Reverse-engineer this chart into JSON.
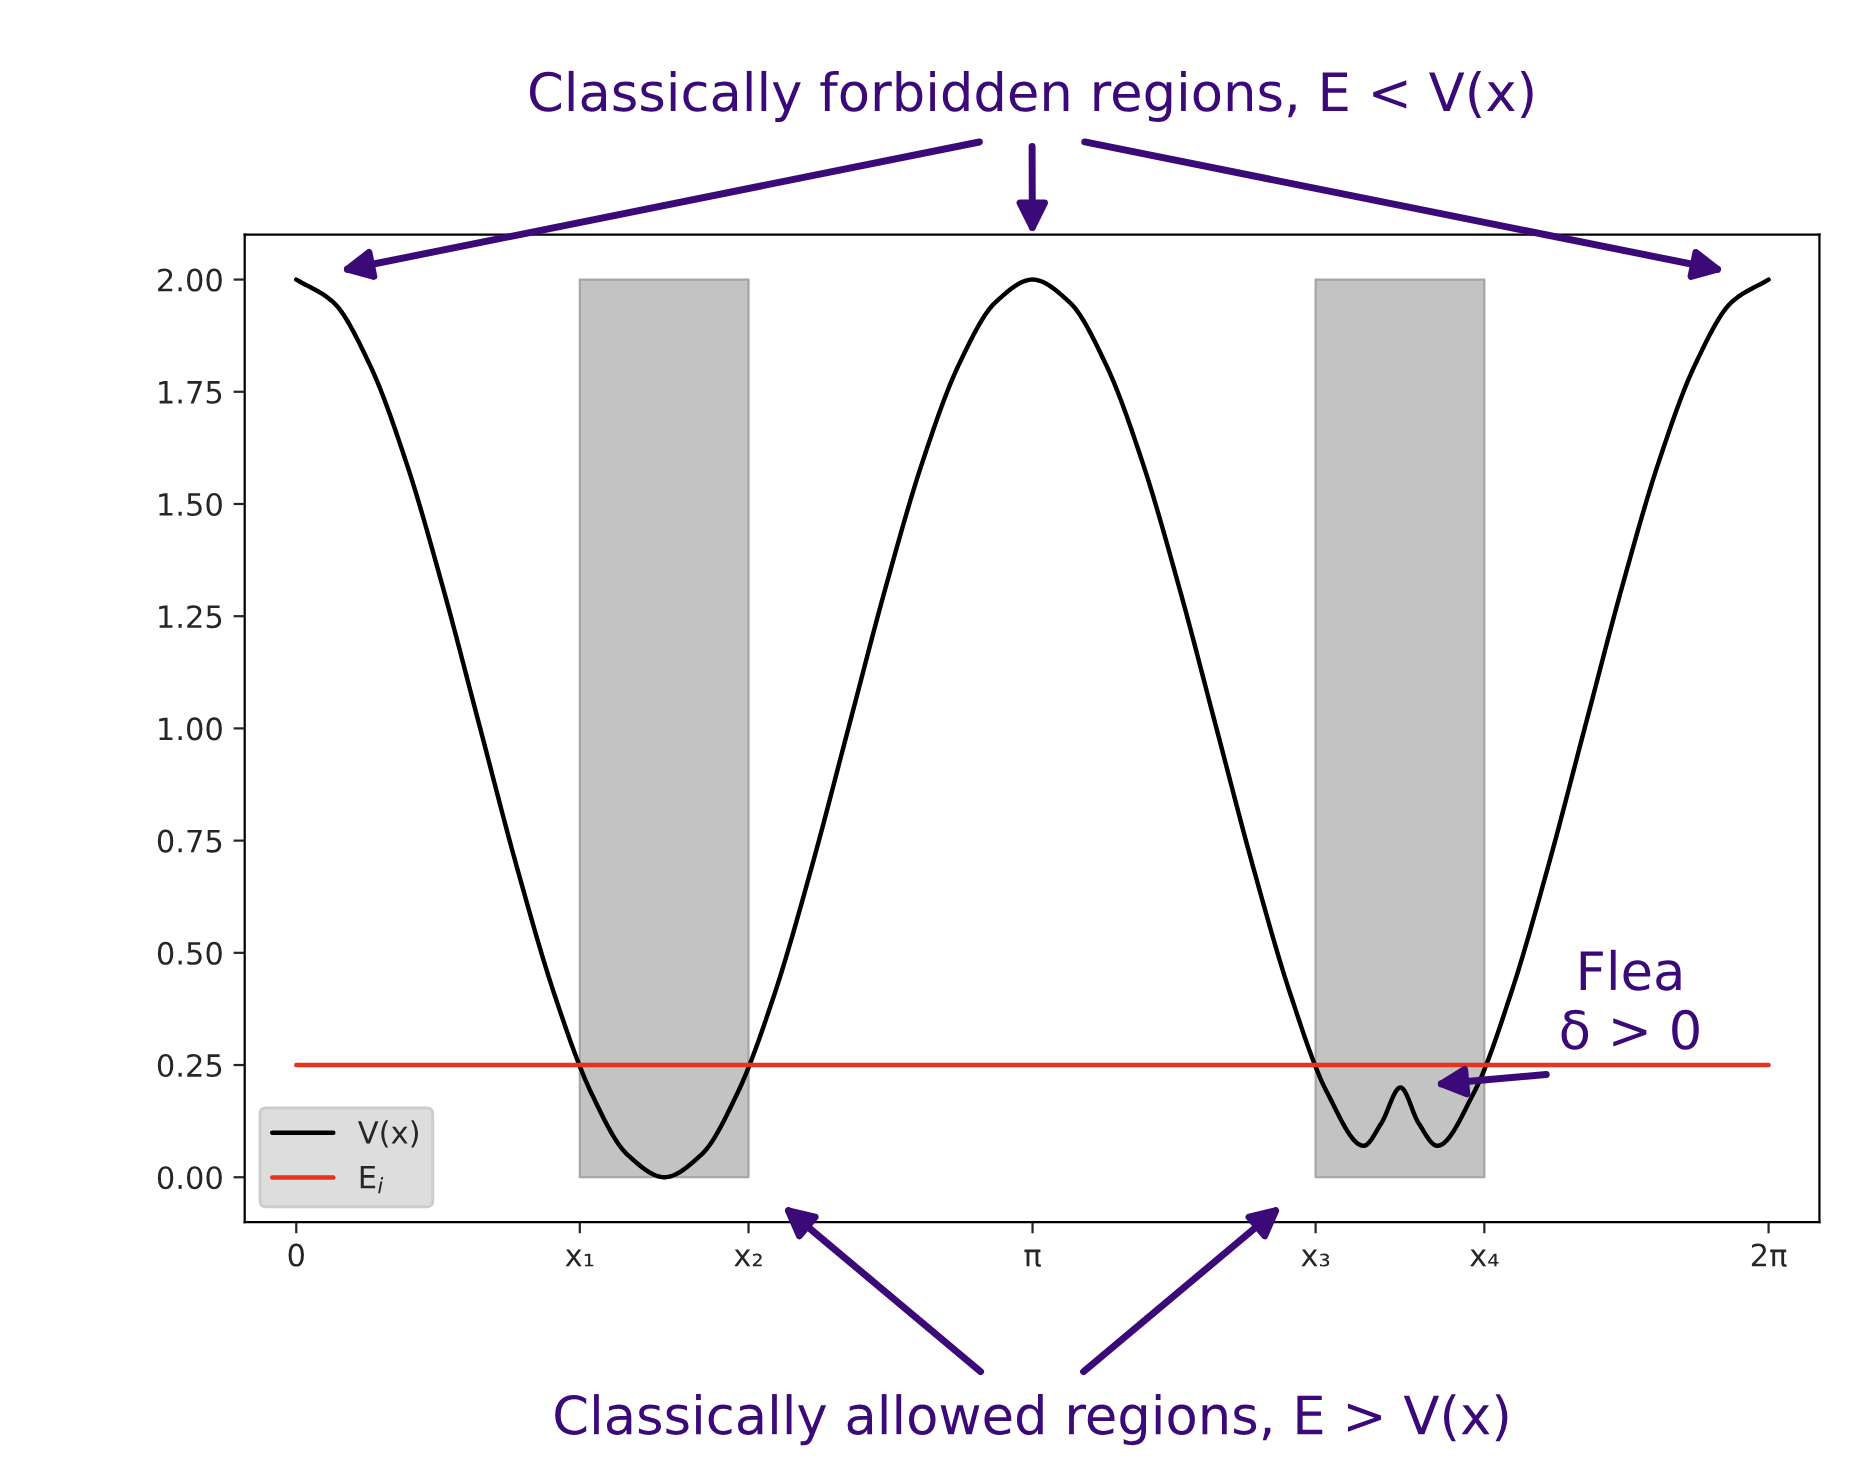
{
  "chart_data": {
    "type": "line",
    "xlim": [
      -0.22,
      6.5
    ],
    "ylim": [
      -0.1,
      2.1
    ],
    "xticks": [
      0,
      {
        "value": 1.21,
        "label": "x₁"
      },
      {
        "value": 1.93,
        "label": "x₂"
      },
      {
        "value": 3.142,
        "label": "π"
      },
      {
        "value": 4.35,
        "label": "x₃"
      },
      {
        "value": 5.07,
        "label": "x₄"
      },
      {
        "value": 6.283,
        "label": "2π"
      }
    ],
    "yticks": [
      {
        "value": 0,
        "label": "0.00"
      },
      {
        "value": 0.25,
        "label": "0.25"
      },
      {
        "value": 0.5,
        "label": "0.50"
      },
      {
        "value": 0.75,
        "label": "0.75"
      },
      {
        "value": 1,
        "label": "1.00"
      },
      {
        "value": 1.25,
        "label": "1.25"
      },
      {
        "value": 1.5,
        "label": "1.50"
      },
      {
        "value": 1.75,
        "label": "1.75"
      },
      {
        "value": 2,
        "label": "2.00"
      }
    ],
    "series": [
      {
        "name": "V(x)",
        "color": "#000000",
        "x": [
          0,
          0.157,
          0.314,
          0.471,
          0.628,
          0.785,
          0.942,
          1.1,
          1.257,
          1.414,
          1.571,
          1.728,
          1.885,
          2.042,
          2.199,
          2.356,
          2.513,
          2.67,
          2.827,
          2.985,
          3.142,
          3.299,
          3.456,
          3.613,
          3.77,
          3.927,
          4.084,
          4.241,
          4.398,
          4.555,
          4.63,
          4.712,
          4.79,
          4.869,
          5.027,
          5.184,
          5.341,
          5.498,
          5.655,
          5.812,
          5.969,
          6.126,
          6.283
        ],
        "values": [
          2,
          1.95,
          1.81,
          1.59,
          1.31,
          1.0,
          0.69,
          0.41,
          0.19,
          0.05,
          0,
          0.05,
          0.19,
          0.41,
          0.69,
          1.0,
          1.31,
          1.59,
          1.81,
          1.95,
          2,
          1.95,
          1.81,
          1.59,
          1.31,
          1.0,
          0.69,
          0.41,
          0.19,
          0.07,
          0.12,
          0.2,
          0.12,
          0.07,
          0.19,
          0.41,
          0.69,
          1.0,
          1.31,
          1.59,
          1.81,
          1.95,
          2
        ]
      },
      {
        "name": "E$_{i}$",
        "color": "#e8321e",
        "x": [
          0,
          6.283
        ],
        "values": [
          0.25,
          0.25
        ]
      }
    ],
    "bands": [
      {
        "axis": "x",
        "from": 1.21,
        "to": 1.93,
        "color": "#bdbdbd"
      },
      {
        "axis": "x",
        "from": 4.35,
        "to": 5.07,
        "color": "#bdbdbd"
      }
    ],
    "legend": "bottom left",
    "grid": false,
    "line_style": "solid",
    "marker": "none",
    "annotations": [
      "Classically forbidden regions, E < V(x)",
      "Classically allowed regions, E > V(x)",
      "Flea\nδ > 0"
    ]
  }
}
